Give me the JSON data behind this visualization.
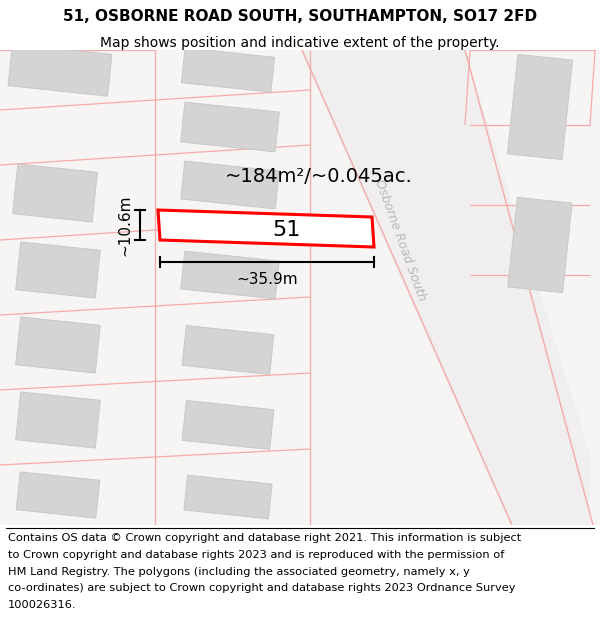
{
  "title_line1": "51, OSBORNE ROAD SOUTH, SOUTHAMPTON, SO17 2FD",
  "title_line2": "Map shows position and indicative extent of the property.",
  "footer_lines": [
    "Contains OS data © Crown copyright and database right 2021. This information is subject",
    "to Crown copyright and database rights 2023 and is reproduced with the permission of",
    "HM Land Registry. The polygons (including the associated geometry, namely x, y",
    "co-ordinates) are subject to Crown copyright and database rights 2023 Ordnance Survey",
    "100026316."
  ],
  "map_bg": "#f7f4f4",
  "road_fill": "#e8e8e8",
  "building_fill": "#d4d4d4",
  "building_edge": "#c8c8c8",
  "parcel_color": "#f5aaaa",
  "plot_fill": "#ffffff",
  "plot_edge": "#ff0000",
  "plot_edge_width": 2.2,
  "street_label": "Osborne Road South",
  "street_label_color": "#b8b8b8",
  "area_label": "~184m²/~0.045ac.",
  "width_label": "~35.9m",
  "height_label": "~10.6m",
  "plot_number": "51",
  "title_fontsize": 11,
  "subtitle_fontsize": 10,
  "footer_fontsize": 8.2,
  "area_fontsize": 14,
  "dim_fontsize": 11
}
